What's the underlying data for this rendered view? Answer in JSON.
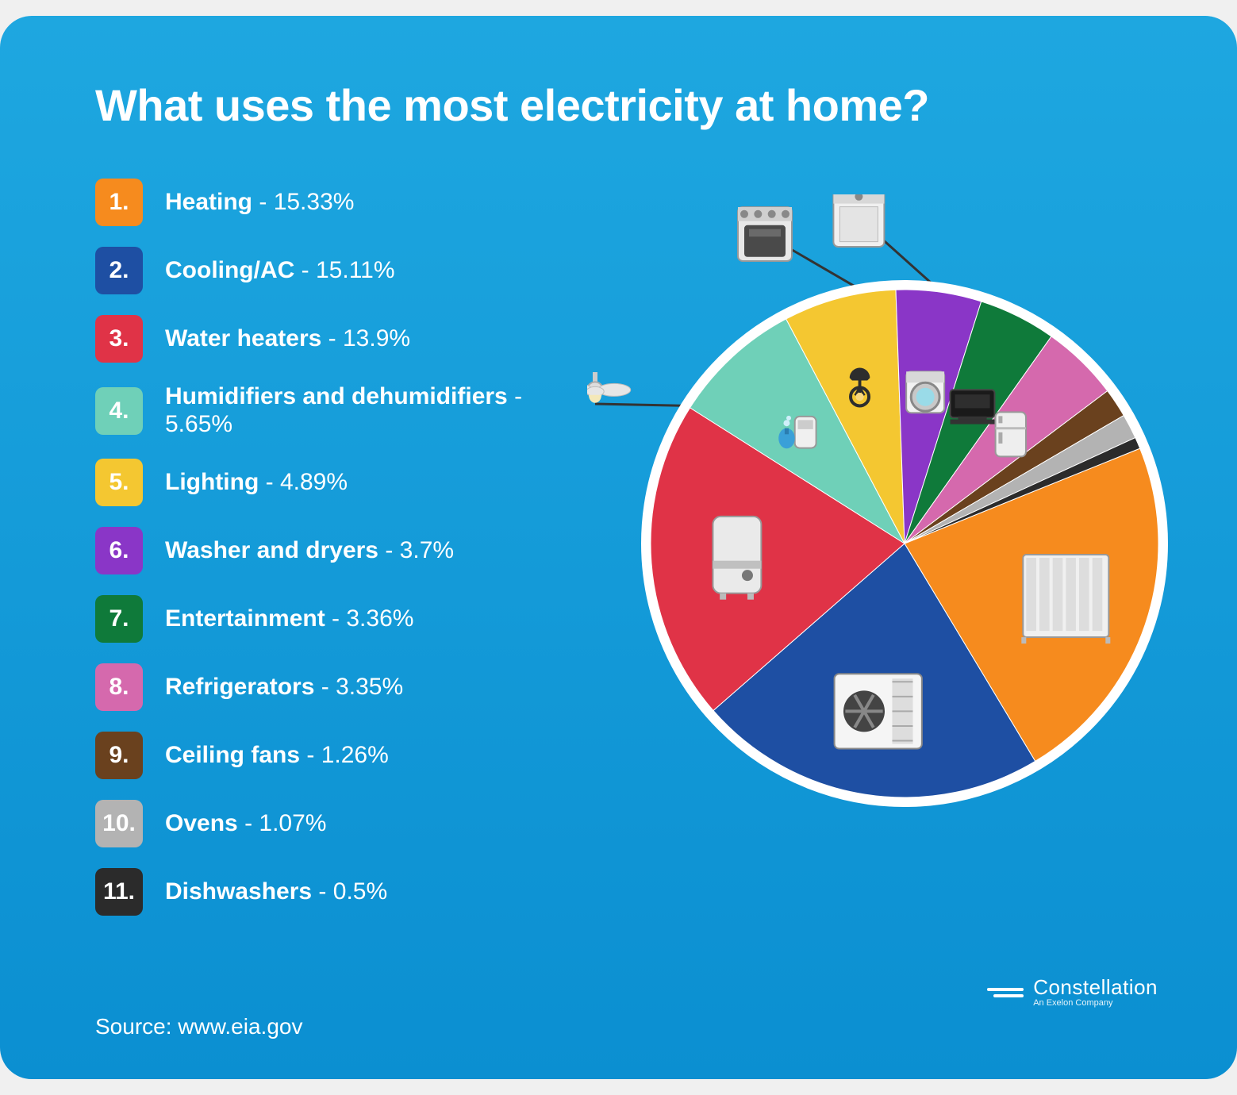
{
  "background": {
    "top": "#1ea7e0",
    "bottom": "#0b8fd1"
  },
  "title": "What uses the most electricity at home?",
  "source_label": "Source: www.eia.gov",
  "brand": {
    "name": "Constellation",
    "subtitle": "An Exelon Company"
  },
  "pie": {
    "type": "pie",
    "outer_radius": 320,
    "ring_color": "#ffffff",
    "ring_width": 12,
    "center_stroke": "#ffffff",
    "center_stroke_width": 1,
    "start_angle_deg": -22,
    "title_fontsize": 56,
    "legend_fontsize": 30,
    "legend_rank_box": 60,
    "legend_rank_radius": 10,
    "slices": [
      {
        "rank": "1.",
        "label": "Heating",
        "valueText": "15.33%",
        "value": 15.33,
        "color": "#f68b1e",
        "icon": "radiator"
      },
      {
        "rank": "2.",
        "label": "Cooling/AC",
        "valueText": "15.11%",
        "value": 15.11,
        "color": "#1e4fa3",
        "icon": "ac-unit"
      },
      {
        "rank": "3.",
        "label": "Water heaters",
        "valueText": "13.9%",
        "value": 13.9,
        "color": "#e03347",
        "icon": "water-heater"
      },
      {
        "rank": "4.",
        "label": "Humidifiers and dehumidifiers",
        "valueText": "5.65%",
        "value": 5.65,
        "color": "#6fd0b8",
        "icon": "humidifier"
      },
      {
        "rank": "5.",
        "label": "Lighting",
        "valueText": "4.89%",
        "value": 4.89,
        "color": "#f4c731",
        "icon": "lamp"
      },
      {
        "rank": "6.",
        "label": "Washer and dryers",
        "valueText": "3.7%",
        "value": 3.7,
        "color": "#8a36c7",
        "icon": "washer"
      },
      {
        "rank": "7.",
        "label": "Entertainment",
        "valueText": "3.36%",
        "value": 3.36,
        "color": "#0f7a3a",
        "icon": "tv"
      },
      {
        "rank": "8.",
        "label": "Refrigerators",
        "valueText": "3.35%",
        "value": 3.35,
        "color": "#d569ad",
        "icon": "fridge"
      },
      {
        "rank": "9.",
        "label": "Ceiling fans",
        "valueText": "1.26%",
        "value": 1.26,
        "color": "#6a411e",
        "icon": "ceiling-fan"
      },
      {
        "rank": "10.",
        "label": "Ovens ",
        "valueText": "1.07%",
        "value": 1.07,
        "color": "#b3b3b3",
        "icon": "oven"
      },
      {
        "rank": "11.",
        "label": "Dishwashers",
        "valueText": "0.5%",
        "value": 0.5,
        "color": "#2b2b2b",
        "icon": "dishwasher"
      }
    ],
    "callout_slices": [
      "ceiling-fan",
      "oven",
      "dishwasher"
    ]
  }
}
